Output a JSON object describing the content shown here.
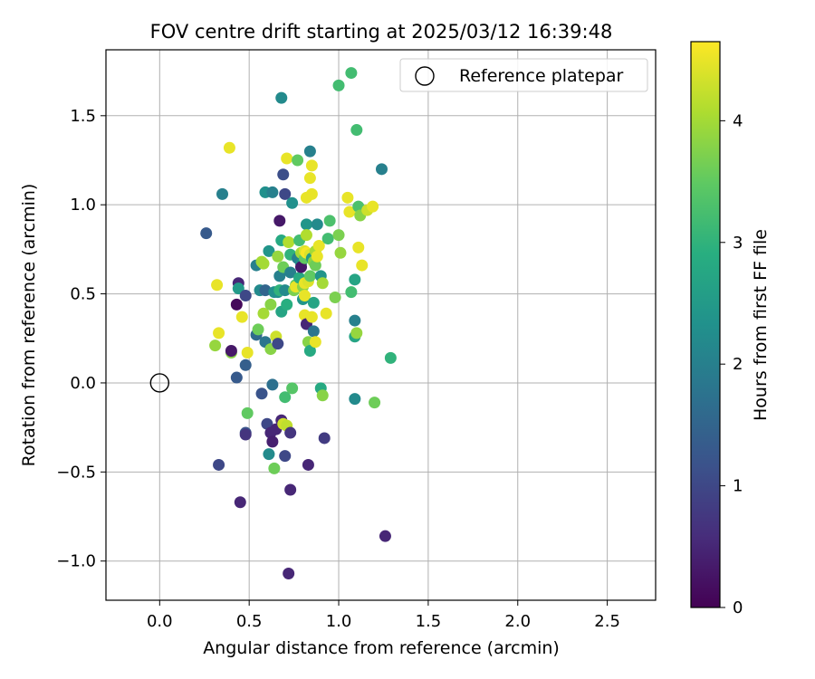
{
  "chart_data": {
    "type": "scatter",
    "title": "FOV centre drift starting at 2025/03/12 16:39:48",
    "xlabel": "Angular distance from reference (arcmin)",
    "ylabel": "Rotation from reference (arcmin)",
    "xlim": [
      -0.3,
      2.77
    ],
    "ylim": [
      -1.22,
      1.87
    ],
    "x_ticks": [
      0.0,
      0.5,
      1.0,
      1.5,
      2.0,
      2.5
    ],
    "y_ticks": [
      -1.0,
      -0.5,
      0.0,
      0.5,
      1.0,
      1.5
    ],
    "x_tick_labels": [
      "0.0",
      "0.5",
      "1.0",
      "1.5",
      "2.0",
      "2.5"
    ],
    "y_tick_labels": [
      "−1.0",
      "−0.5",
      "0.0",
      "0.5",
      "1.0",
      "1.5"
    ],
    "grid": true,
    "colormap": "viridis",
    "colorbar": {
      "label": "Hours from first FF file",
      "range": [
        0,
        4.65
      ],
      "ticks": [
        0,
        1,
        2,
        3,
        4
      ],
      "tick_labels": [
        "0",
        "1",
        "2",
        "3",
        "4"
      ]
    },
    "legend": {
      "position": "top-right",
      "entries": [
        "Reference platepar"
      ]
    },
    "reference_point": {
      "name": "Reference platepar",
      "x": 0.0,
      "y": 0.0
    },
    "points": [
      [
        0.26,
        0.84,
        1.3
      ],
      [
        0.33,
        -0.46,
        1.0
      ],
      [
        0.35,
        1.06,
        2.0
      ],
      [
        0.39,
        1.32,
        4.5
      ],
      [
        0.32,
        0.55,
        4.5
      ],
      [
        0.33,
        0.28,
        4.5
      ],
      [
        0.31,
        0.21,
        3.9
      ],
      [
        0.4,
        0.17,
        3.8
      ],
      [
        0.4,
        0.18,
        0.3
      ],
      [
        0.43,
        0.03,
        1.3
      ],
      [
        0.43,
        0.44,
        0.1
      ],
      [
        0.44,
        0.56,
        0.5
      ],
      [
        0.44,
        0.53,
        2.5
      ],
      [
        0.45,
        -0.67,
        0.5
      ],
      [
        0.46,
        0.37,
        4.5
      ],
      [
        0.48,
        0.49,
        1.0
      ],
      [
        0.48,
        0.1,
        1.4
      ],
      [
        0.49,
        0.17,
        4.5
      ],
      [
        0.48,
        -0.28,
        1.2
      ],
      [
        0.48,
        -0.29,
        0.7
      ],
      [
        0.49,
        -0.17,
        3.5
      ],
      [
        0.54,
        0.66,
        2.0
      ],
      [
        0.54,
        0.27,
        1.6
      ],
      [
        0.55,
        0.3,
        3.6
      ],
      [
        0.57,
        0.68,
        4.0
      ],
      [
        0.56,
        0.52,
        2.2
      ],
      [
        0.57,
        -0.06,
        1.2
      ],
      [
        0.58,
        0.39,
        4.0
      ],
      [
        0.58,
        0.67,
        4.0
      ],
      [
        0.59,
        1.07,
        2.3
      ],
      [
        0.59,
        0.52,
        1.5
      ],
      [
        0.59,
        0.23,
        1.8
      ],
      [
        0.6,
        -0.23,
        1.0
      ],
      [
        0.61,
        0.74,
        2.4
      ],
      [
        0.61,
        -0.4,
        2.2
      ],
      [
        0.62,
        0.44,
        3.8
      ],
      [
        0.62,
        -0.28,
        0.5
      ],
      [
        0.62,
        0.19,
        3.8
      ],
      [
        0.63,
        -0.01,
        1.7
      ],
      [
        0.63,
        1.07,
        2.0
      ],
      [
        0.63,
        -0.33,
        0.4
      ],
      [
        0.64,
        0.51,
        2.3
      ],
      [
        0.64,
        -0.48,
        3.6
      ],
      [
        0.65,
        0.26,
        4.3
      ],
      [
        0.65,
        -0.26,
        0.5
      ],
      [
        0.66,
        0.51,
        2.3
      ],
      [
        0.66,
        0.71,
        3.9
      ],
      [
        0.66,
        0.22,
        1.0
      ],
      [
        0.67,
        0.91,
        0.3
      ],
      [
        0.67,
        0.6,
        2.0
      ],
      [
        0.67,
        0.52,
        3.0
      ],
      [
        0.68,
        0.4,
        2.7
      ],
      [
        0.68,
        1.6,
        2.2
      ],
      [
        0.68,
        0.8,
        2.8
      ],
      [
        0.68,
        -0.21,
        0.5
      ],
      [
        0.69,
        1.17,
        1.1
      ],
      [
        0.69,
        -0.23,
        4.3
      ],
      [
        0.69,
        0.65,
        3.6
      ],
      [
        0.7,
        -0.41,
        1.0
      ],
      [
        0.7,
        1.06,
        1.0
      ],
      [
        0.7,
        0.52,
        2.2
      ],
      [
        0.7,
        -0.08,
        3.2
      ],
      [
        0.71,
        0.44,
        2.9
      ],
      [
        0.71,
        1.26,
        4.5
      ],
      [
        0.71,
        -0.24,
        4.2
      ],
      [
        0.72,
        0.79,
        4.1
      ],
      [
        0.72,
        -1.07,
        0.5
      ],
      [
        0.73,
        -0.6,
        0.5
      ],
      [
        0.73,
        0.62,
        2.0
      ],
      [
        0.73,
        -0.28,
        0.7
      ],
      [
        0.73,
        0.72,
        3.0
      ],
      [
        0.74,
        -0.03,
        3.4
      ],
      [
        0.74,
        1.01,
        2.3
      ],
      [
        0.75,
        0.52,
        3.7
      ],
      [
        0.76,
        0.55,
        3.5
      ],
      [
        0.76,
        0.54,
        4.5
      ],
      [
        0.77,
        0.7,
        2.0
      ],
      [
        0.77,
        1.25,
        3.5
      ],
      [
        0.78,
        0.59,
        2.8
      ],
      [
        0.78,
        0.8,
        3.2
      ],
      [
        0.79,
        0.73,
        4.0
      ],
      [
        0.79,
        0.67,
        2.3
      ],
      [
        0.79,
        0.65,
        0.3
      ],
      [
        0.8,
        0.47,
        2.4
      ],
      [
        0.8,
        0.54,
        3.8
      ],
      [
        0.81,
        0.56,
        4.5
      ],
      [
        0.81,
        0.7,
        3.5
      ],
      [
        0.81,
        0.74,
        4.4
      ],
      [
        0.81,
        0.49,
        4.5
      ],
      [
        0.81,
        0.38,
        4.5
      ],
      [
        0.82,
        0.89,
        2.4
      ],
      [
        0.82,
        0.73,
        4.6
      ],
      [
        0.82,
        0.33,
        0.5
      ],
      [
        0.82,
        1.04,
        4.5
      ],
      [
        0.82,
        0.83,
        4.1
      ],
      [
        0.83,
        0.23,
        3.8
      ],
      [
        0.83,
        0.57,
        4.4
      ],
      [
        0.83,
        -0.46,
        0.5
      ],
      [
        0.84,
        0.6,
        3.5
      ],
      [
        0.84,
        1.3,
        2.0
      ],
      [
        0.84,
        1.15,
        4.5
      ],
      [
        0.84,
        0.72,
        4.4
      ],
      [
        0.84,
        0.18,
        2.8
      ],
      [
        0.85,
        1.22,
        4.5
      ],
      [
        0.85,
        0.37,
        4.5
      ],
      [
        0.85,
        1.06,
        4.5
      ],
      [
        0.85,
        0.7,
        2.5
      ],
      [
        0.86,
        0.29,
        1.8
      ],
      [
        0.86,
        0.45,
        2.7
      ],
      [
        0.86,
        0.68,
        3.8
      ],
      [
        0.87,
        0.23,
        4.5
      ],
      [
        0.87,
        0.66,
        3.6
      ],
      [
        0.87,
        0.74,
        4.0
      ],
      [
        0.88,
        0.89,
        2.2
      ],
      [
        0.88,
        0.71,
        4.5
      ],
      [
        0.89,
        0.77,
        4.5
      ],
      [
        0.9,
        0.6,
        2.4
      ],
      [
        0.9,
        -0.03,
        2.8
      ],
      [
        0.91,
        -0.07,
        3.8
      ],
      [
        0.91,
        0.56,
        4.0
      ],
      [
        0.92,
        -0.31,
        0.8
      ],
      [
        0.93,
        0.39,
        4.5
      ],
      [
        0.94,
        0.81,
        3.2
      ],
      [
        0.95,
        0.91,
        3.3
      ],
      [
        0.98,
        0.48,
        3.7
      ],
      [
        1.0,
        1.67,
        3.2
      ],
      [
        1.0,
        0.83,
        3.7
      ],
      [
        1.01,
        0.73,
        3.9
      ],
      [
        1.05,
        1.04,
        4.5
      ],
      [
        1.06,
        0.96,
        4.5
      ],
      [
        1.07,
        1.74,
        3.2
      ],
      [
        1.07,
        0.51,
        3.2
      ],
      [
        1.09,
        -0.09,
        2.2
      ],
      [
        1.09,
        0.35,
        2.0
      ],
      [
        1.09,
        0.58,
        2.7
      ],
      [
        1.09,
        0.26,
        2.7
      ],
      [
        1.1,
        1.42,
        3.2
      ],
      [
        1.1,
        0.28,
        3.9
      ],
      [
        1.11,
        0.99,
        3.3
      ],
      [
        1.11,
        0.76,
        4.5
      ],
      [
        1.12,
        0.94,
        3.8
      ],
      [
        1.13,
        0.66,
        4.5
      ],
      [
        1.16,
        0.97,
        4.3
      ],
      [
        1.19,
        0.99,
        4.5
      ],
      [
        1.2,
        -0.11,
        3.6
      ],
      [
        1.24,
        1.2,
        2.0
      ],
      [
        1.26,
        -0.86,
        0.5
      ],
      [
        1.29,
        0.14,
        3.0
      ]
    ]
  }
}
